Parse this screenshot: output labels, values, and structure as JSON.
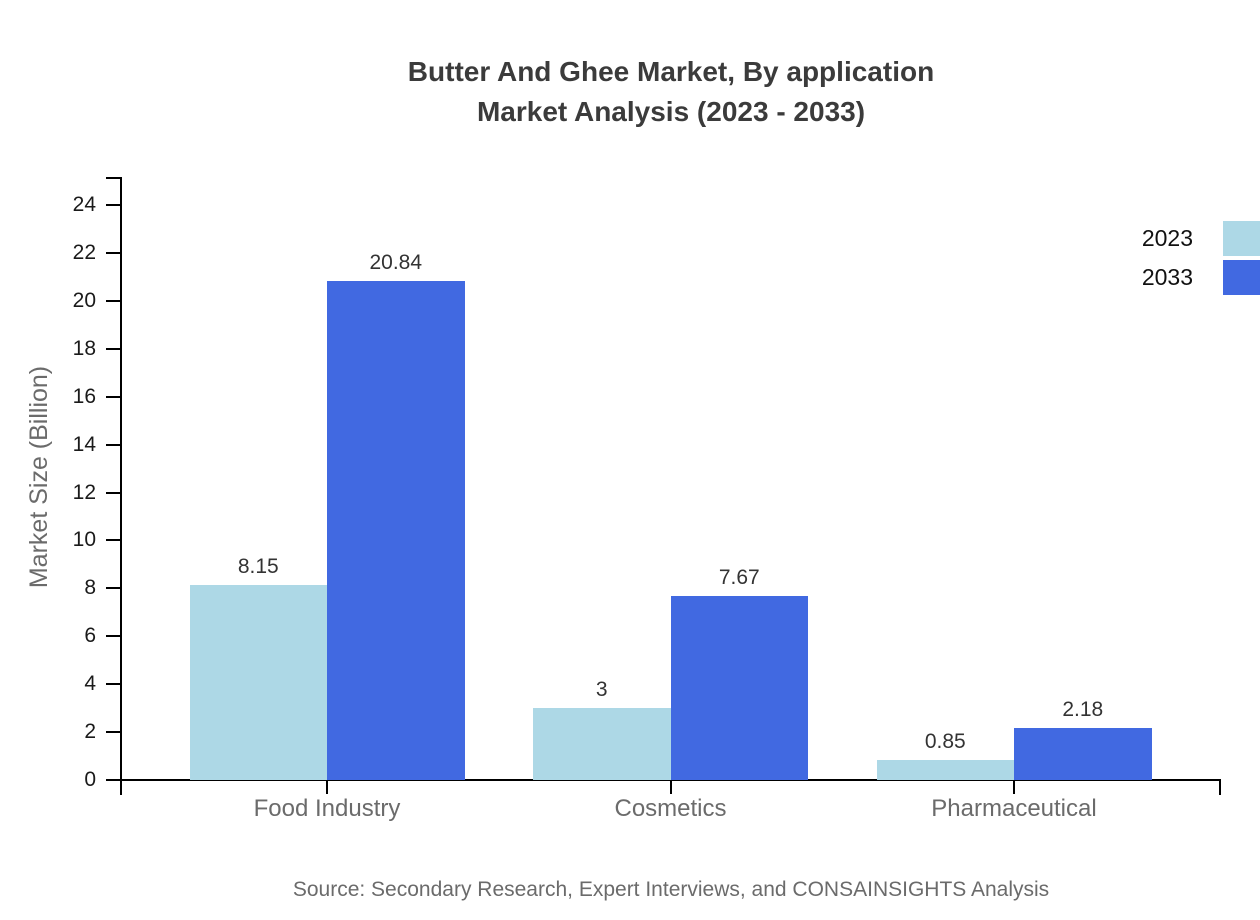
{
  "title": {
    "line1": "Butter And Ghee Market, By application",
    "line2": "Market Analysis (2023 - 2033)"
  },
  "source": "Source: Secondary Research, Expert Interviews, and CONSAINSIGHTS Analysis",
  "chart_data": {
    "type": "bar",
    "title": "Butter And Ghee Market, By application Market Analysis (2023 - 2033)",
    "categories": [
      "Food Industry",
      "Cosmetics",
      "Pharmaceutical"
    ],
    "series": [
      {
        "name": "2023",
        "color": "#ADD8E6",
        "values": [
          8.15,
          3,
          0.85
        ]
      },
      {
        "name": "2033",
        "color": "#4169E1",
        "values": [
          20.84,
          7.67,
          2.18
        ]
      }
    ],
    "xlabel": "",
    "ylabel": "Market Size (Billion)",
    "ylim": [
      0,
      24
    ],
    "ytick_step": 2,
    "yticks": [
      0,
      2,
      4,
      6,
      8,
      10,
      12,
      14,
      16,
      18,
      20,
      22,
      24
    ],
    "grid": false,
    "legend_position": "top-right",
    "value_labels": true,
    "axis_color": "#000000",
    "text_colors": {
      "title": "#3b3b3b",
      "tick_labels": "#1a1a1a",
      "category_labels": "#6b6b6b",
      "value_labels": "#333333",
      "axis_title": "#6b6b6b",
      "legend": "#111111",
      "source": "#6b6b6b"
    }
  }
}
